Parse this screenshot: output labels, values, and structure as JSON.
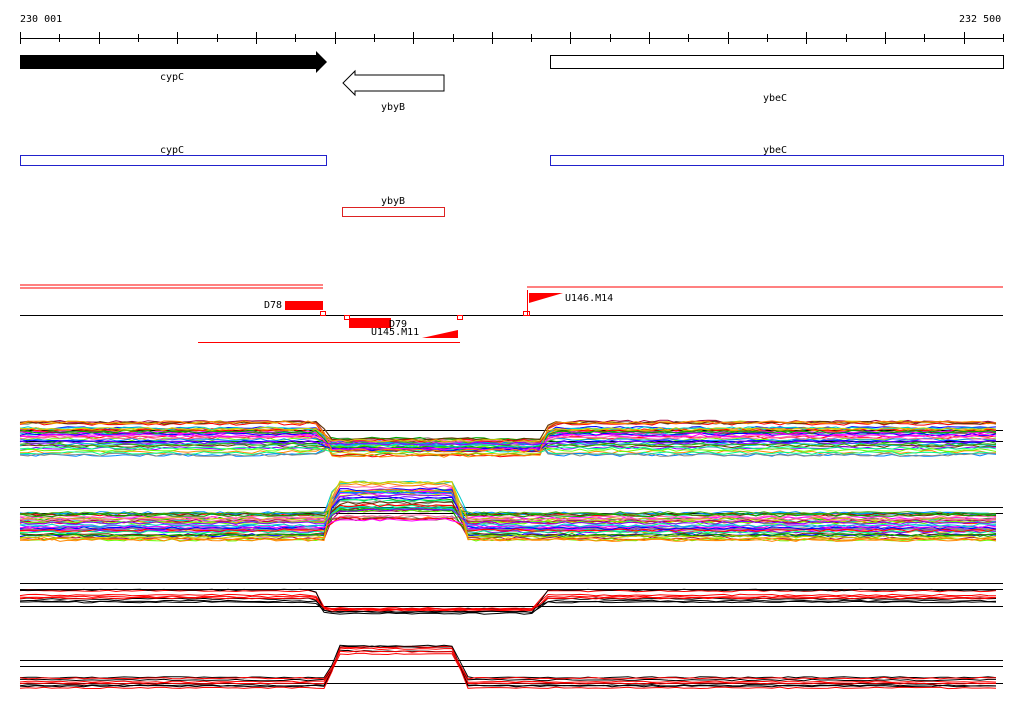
{
  "ruler": {
    "start_label": "230 001",
    "end_label": "232 500"
  },
  "genes": [
    {
      "name": "cypC",
      "strand": "+",
      "style": "filled"
    },
    {
      "name": "ybyB",
      "strand": "-",
      "style": "outline"
    },
    {
      "name": "ybeC",
      "strand": "+",
      "style": "outline"
    }
  ],
  "annotations": [
    {
      "name": "cypC",
      "color": "#2222cc"
    },
    {
      "name": "ybeC",
      "color": "#2222cc"
    },
    {
      "name": "ybyB",
      "color": "#dd2222"
    }
  ],
  "features": [
    {
      "label": "D78"
    },
    {
      "label": "D79"
    },
    {
      "label": "U145.M11"
    },
    {
      "label": "U146.M14"
    }
  ],
  "colors": {
    "feature": "#ff0000",
    "line": "#000000",
    "ruler": "#000000"
  },
  "expression_panels": 4
}
